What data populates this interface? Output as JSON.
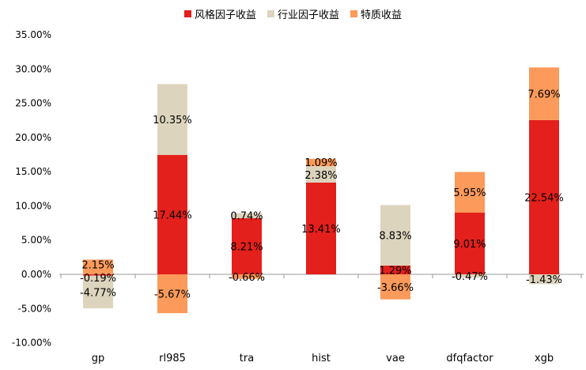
{
  "chart_data": {
    "type": "bar",
    "stacked": true,
    "categories": [
      "gp",
      "rl985",
      "tra",
      "hist",
      "vae",
      "dfqfactor",
      "xgb"
    ],
    "series": [
      {
        "name": "风格因子收益",
        "color": "#e3201b",
        "values": [
          -0.19,
          17.44,
          8.21,
          13.41,
          1.29,
          9.01,
          22.54
        ]
      },
      {
        "name": "行业因子收益",
        "color": "#ddd4bd",
        "values": [
          -4.77,
          10.35,
          0.74,
          2.38,
          8.83,
          -0.47,
          -1.43
        ]
      },
      {
        "name": "特质收益",
        "color": "#fb9a5a",
        "values": [
          2.15,
          -5.67,
          -0.66,
          1.09,
          -3.66,
          5.95,
          7.69
        ]
      }
    ],
    "ylim": [
      -10,
      35
    ],
    "yticks": [
      "-10.00%",
      "-5.00%",
      "0.00%",
      "5.00%",
      "10.00%",
      "15.00%",
      "20.00%",
      "25.00%",
      "30.00%",
      "35.00%"
    ],
    "data_labels": true,
    "legend": "top",
    "grid": false
  }
}
